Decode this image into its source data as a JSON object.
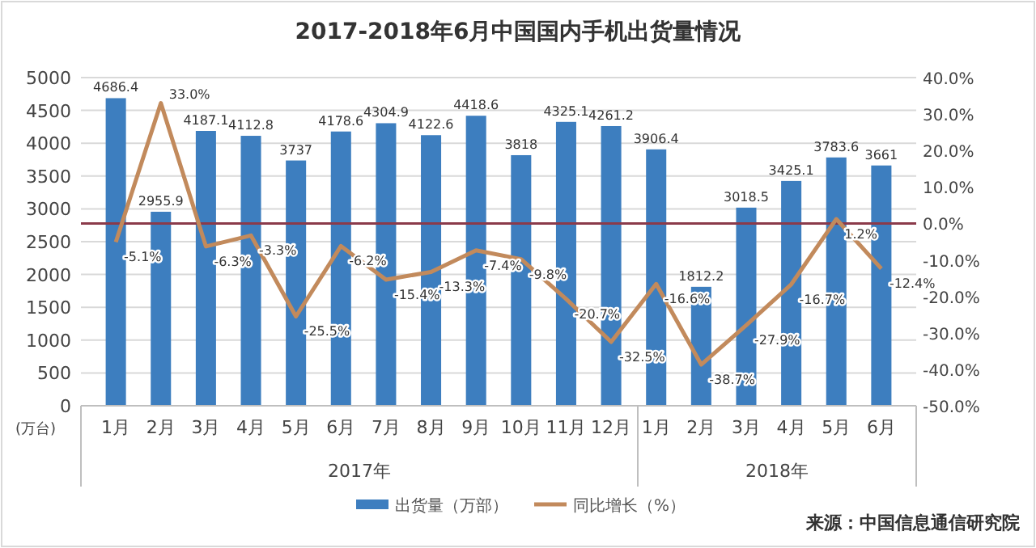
{
  "chart_data": {
    "type": "bar",
    "title": "2017-2018年6月中国国内手机出货量情况",
    "ylabel": "(万台)",
    "categories": [
      "1月",
      "2月",
      "3月",
      "4月",
      "5月",
      "6月",
      "7月",
      "8月",
      "9月",
      "10月",
      "11月",
      "12月",
      "1月",
      "2月",
      "3月",
      "4月",
      "5月",
      "6月"
    ],
    "series": [
      {
        "name": "出货量（万部）",
        "type": "bar",
        "color": "#3d7ebf",
        "values": [
          4686.4,
          2955.9,
          4187.1,
          4112.8,
          3737,
          4178.6,
          4304.9,
          4122.6,
          4418.6,
          3818,
          4325.1,
          4261.2,
          3906.4,
          1812.2,
          3018.5,
          3425.1,
          3783.6,
          3661
        ]
      },
      {
        "name": "同比增长（%）",
        "type": "line",
        "axis": "y2",
        "color": "#c28a5c",
        "values": [
          -5.1,
          33.0,
          -6.3,
          -3.3,
          -25.5,
          -6.2,
          -15.4,
          -13.3,
          -7.4,
          -9.8,
          -20.7,
          -32.5,
          -16.6,
          -38.7,
          -27.9,
          -16.7,
          1.2,
          -12.4
        ],
        "value_labels": [
          "-5.1%",
          "33.0%",
          "-6.3%",
          "-3.3%",
          "-25.5%",
          "-6.2%",
          "-15.4%",
          "-13.3%",
          "-7.4%",
          "-9.8%",
          "-20.7%",
          "-32.5%",
          "-16.6%",
          "-38.7%",
          "-27.9%",
          "-16.7%",
          "1.2%",
          "-12.4%"
        ]
      }
    ],
    "data_labels": true,
    "ylim": [
      0,
      5000
    ],
    "yticks": [
      0,
      500,
      1000,
      1500,
      2000,
      2500,
      3000,
      3500,
      4000,
      4500,
      5000
    ],
    "y2lim": [
      -50,
      40
    ],
    "y2ticks": [
      {
        "value": -50,
        "label": "-50.0%"
      },
      {
        "value": -40,
        "label": "-40.0%"
      },
      {
        "value": -30,
        "label": "-30.0%"
      },
      {
        "value": -20,
        "label": "-20.0%"
      },
      {
        "value": -10,
        "label": "-10.0%"
      },
      {
        "value": 0,
        "label": "0.0%"
      },
      {
        "value": 10,
        "label": "10.0%"
      },
      {
        "value": 20,
        "label": "20.0%"
      },
      {
        "value": 30,
        "label": "30.0%"
      },
      {
        "value": 40,
        "label": "40.0%"
      }
    ],
    "ref_lines": [
      {
        "axis": "y2",
        "value": 0,
        "color": "#8b3a4a"
      }
    ],
    "grid": "y",
    "legend": "bottom",
    "annotations": [
      "2017年",
      "2018年",
      "来源：中国信息通信研究院"
    ]
  }
}
